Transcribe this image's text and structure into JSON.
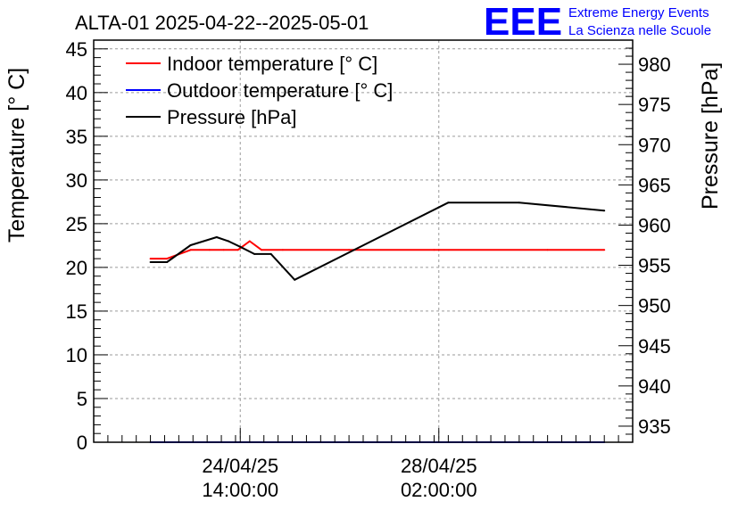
{
  "logo": {
    "mark": "EEE",
    "line1": "Extreme Energy Events",
    "line2": "La Scienza nelle Scuole",
    "color": "#0000ff"
  },
  "chart_data": {
    "type": "line",
    "title": "ALTA-01 2025-04-22--2025-05-01",
    "ylabel": "Temperature [° C]",
    "y2label": "Pressure [hPa]",
    "ylim": [
      0,
      46
    ],
    "y2lim": [
      933,
      983
    ],
    "yticks": [
      0,
      5,
      10,
      15,
      20,
      25,
      30,
      35,
      40,
      45
    ],
    "y2ticks": [
      935,
      940,
      945,
      950,
      955,
      960,
      965,
      970,
      975,
      980
    ],
    "xlim": [
      "2025-04-22T00:00",
      "2025-05-01T12:00"
    ],
    "xticks": [
      {
        "t": "2025-04-24T14:00",
        "line1": "24/04/25",
        "line2": "14:00:00"
      },
      {
        "t": "2025-04-28T02:00",
        "line1": "28/04/25",
        "line2": "02:00:00"
      }
    ],
    "grid": true,
    "legend_position": "top-left",
    "series": [
      {
        "name": "Indoor temperature [° C]",
        "axis": "left",
        "color": "#ff0000",
        "points": [
          [
            "2025-04-23T00:00",
            21.0
          ],
          [
            "2025-04-23T07:00",
            21.0
          ],
          [
            "2025-04-23T17:00",
            22.0
          ],
          [
            "2025-04-24T01:00",
            22.0
          ],
          [
            "2025-04-24T07:00",
            22.0
          ],
          [
            "2025-04-24T13:00",
            22.0
          ],
          [
            "2025-04-24T18:00",
            23.0
          ],
          [
            "2025-04-24T23:00",
            22.0
          ],
          [
            "2025-04-25T08:00",
            22.0
          ],
          [
            "2025-04-26T12:00",
            22.0
          ],
          [
            "2025-04-28T00:00",
            22.0
          ],
          [
            "2025-04-30T00:00",
            22.0
          ],
          [
            "2025-05-01T00:00",
            22.0
          ]
        ]
      },
      {
        "name": "Outdoor temperature [° C]",
        "axis": "left",
        "color": "#0000ff",
        "points": [
          [
            "2025-04-23T00:00",
            0.0
          ],
          [
            "2025-05-01T00:00",
            0.0
          ]
        ]
      },
      {
        "name": "Pressure [hPa]",
        "axis": "right",
        "color": "#000000",
        "points": [
          [
            "2025-04-23T00:00",
            955.4
          ],
          [
            "2025-04-23T07:00",
            955.4
          ],
          [
            "2025-04-23T17:00",
            957.5
          ],
          [
            "2025-04-24T04:00",
            958.5
          ],
          [
            "2025-04-24T09:00",
            958.0
          ],
          [
            "2025-04-24T14:00",
            957.3
          ],
          [
            "2025-04-24T20:00",
            956.4
          ],
          [
            "2025-04-25T03:00",
            956.4
          ],
          [
            "2025-04-25T13:00",
            953.2
          ],
          [
            "2025-04-28T06:00",
            962.8
          ],
          [
            "2025-04-29T12:00",
            962.8
          ],
          [
            "2025-05-01T00:00",
            961.8
          ]
        ]
      }
    ]
  }
}
